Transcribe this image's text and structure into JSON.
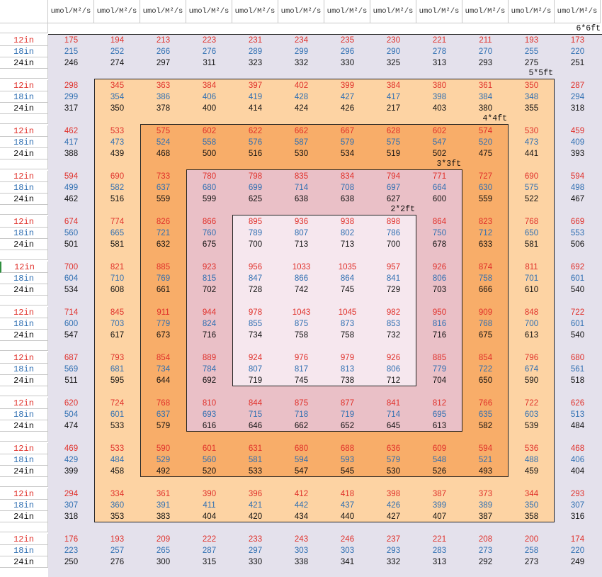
{
  "column_header": "umol/M²/s",
  "row_labels": [
    "12in",
    "18in",
    "24in"
  ],
  "zone_labels": {
    "z6": "6*6ft",
    "z5": "5*5ft",
    "z4": "4*4ft",
    "z3": "3*3ft",
    "z2": "2*2ft"
  },
  "colors": {
    "12in": "#e0302a",
    "18in": "#2f6fb2",
    "24in": "#111111",
    "zone_6ft": "#e4e1ec",
    "zone_5ft": "#fdd3a3",
    "zone_4ft": "#f8ad69",
    "zone_3ft": "#eac0c7",
    "zone_2ft": "#f6e7ee"
  },
  "table": [
    [
      [
        175,
        194,
        213,
        223,
        231,
        234,
        235,
        230,
        221,
        211,
        193,
        173
      ],
      [
        215,
        252,
        266,
        276,
        289,
        299,
        296,
        290,
        278,
        270,
        255,
        220
      ],
      [
        246,
        274,
        297,
        311,
        323,
        332,
        330,
        325,
        313,
        293,
        275,
        251
      ]
    ],
    [
      [
        298,
        345,
        363,
        384,
        397,
        402,
        399,
        384,
        380,
        361,
        350,
        287
      ],
      [
        299,
        354,
        386,
        406,
        419,
        428,
        427,
        417,
        398,
        384,
        348,
        294
      ],
      [
        317,
        350,
        378,
        400,
        414,
        424,
        426,
        217,
        403,
        380,
        355,
        318
      ]
    ],
    [
      [
        462,
        533,
        575,
        602,
        622,
        662,
        667,
        628,
        602,
        574,
        530,
        459
      ],
      [
        417,
        473,
        524,
        558,
        576,
        587,
        579,
        575,
        547,
        520,
        473,
        409
      ],
      [
        388,
        439,
        468,
        500,
        516,
        530,
        534,
        519,
        502,
        475,
        441,
        393
      ]
    ],
    [
      [
        594,
        690,
        733,
        780,
        798,
        835,
        834,
        794,
        771,
        727,
        690,
        594
      ],
      [
        499,
        582,
        637,
        680,
        699,
        714,
        708,
        697,
        664,
        630,
        575,
        498
      ],
      [
        462,
        516,
        559,
        599,
        625,
        638,
        638,
        627,
        600,
        559,
        522,
        467
      ]
    ],
    [
      [
        674,
        774,
        826,
        866,
        895,
        936,
        938,
        898,
        864,
        823,
        768,
        669
      ],
      [
        560,
        665,
        721,
        760,
        789,
        807,
        802,
        786,
        750,
        712,
        650,
        553
      ],
      [
        501,
        581,
        632,
        675,
        700,
        713,
        713,
        700,
        678,
        633,
        581,
        506
      ]
    ],
    [
      [
        700,
        821,
        885,
        923,
        956,
        1033,
        1035,
        957,
        926,
        874,
        811,
        692
      ],
      [
        604,
        710,
        769,
        815,
        847,
        866,
        864,
        841,
        806,
        758,
        701,
        601
      ],
      [
        534,
        608,
        661,
        702,
        728,
        742,
        745,
        729,
        703,
        666,
        610,
        540
      ]
    ],
    [
      [
        714,
        845,
        911,
        944,
        978,
        1043,
        1045,
        982,
        950,
        909,
        848,
        722
      ],
      [
        600,
        703,
        779,
        824,
        855,
        875,
        873,
        853,
        816,
        768,
        700,
        601
      ],
      [
        547,
        617,
        673,
        716,
        734,
        758,
        758,
        732,
        716,
        675,
        613,
        540
      ]
    ],
    [
      [
        687,
        793,
        854,
        889,
        924,
        976,
        979,
        926,
        885,
        854,
        796,
        680
      ],
      [
        569,
        681,
        734,
        784,
        807,
        817,
        813,
        806,
        779,
        722,
        674,
        561
      ],
      [
        511,
        595,
        644,
        692,
        719,
        745,
        738,
        712,
        704,
        650,
        590,
        518
      ]
    ],
    [
      [
        620,
        724,
        768,
        810,
        844,
        875,
        877,
        841,
        812,
        766,
        722,
        626
      ],
      [
        504,
        601,
        637,
        693,
        715,
        718,
        719,
        714,
        695,
        635,
        603,
        513
      ],
      [
        474,
        533,
        579,
        616,
        646,
        662,
        652,
        645,
        613,
        582,
        539,
        484
      ]
    ],
    [
      [
        469,
        533,
        590,
        601,
        631,
        680,
        688,
        636,
        609,
        594,
        536,
        468
      ],
      [
        429,
        484,
        529,
        560,
        581,
        594,
        593,
        579,
        548,
        521,
        488,
        406
      ],
      [
        399,
        458,
        492,
        520,
        533,
        547,
        545,
        530,
        526,
        493,
        459,
        404
      ]
    ],
    [
      [
        294,
        334,
        361,
        390,
        396,
        412,
        418,
        398,
        387,
        373,
        344,
        293
      ],
      [
        307,
        360,
        391,
        411,
        421,
        442,
        437,
        426,
        399,
        389,
        350,
        307
      ],
      [
        318,
        353,
        383,
        404,
        420,
        434,
        440,
        427,
        407,
        387,
        358,
        316
      ]
    ],
    [
      [
        176,
        193,
        209,
        222,
        233,
        243,
        246,
        237,
        221,
        208,
        200,
        174
      ],
      [
        223,
        257,
        265,
        287,
        297,
        303,
        303,
        293,
        283,
        273,
        258,
        220
      ],
      [
        250,
        276,
        300,
        315,
        330,
        338,
        341,
        332,
        313,
        292,
        273,
        249
      ]
    ]
  ]
}
